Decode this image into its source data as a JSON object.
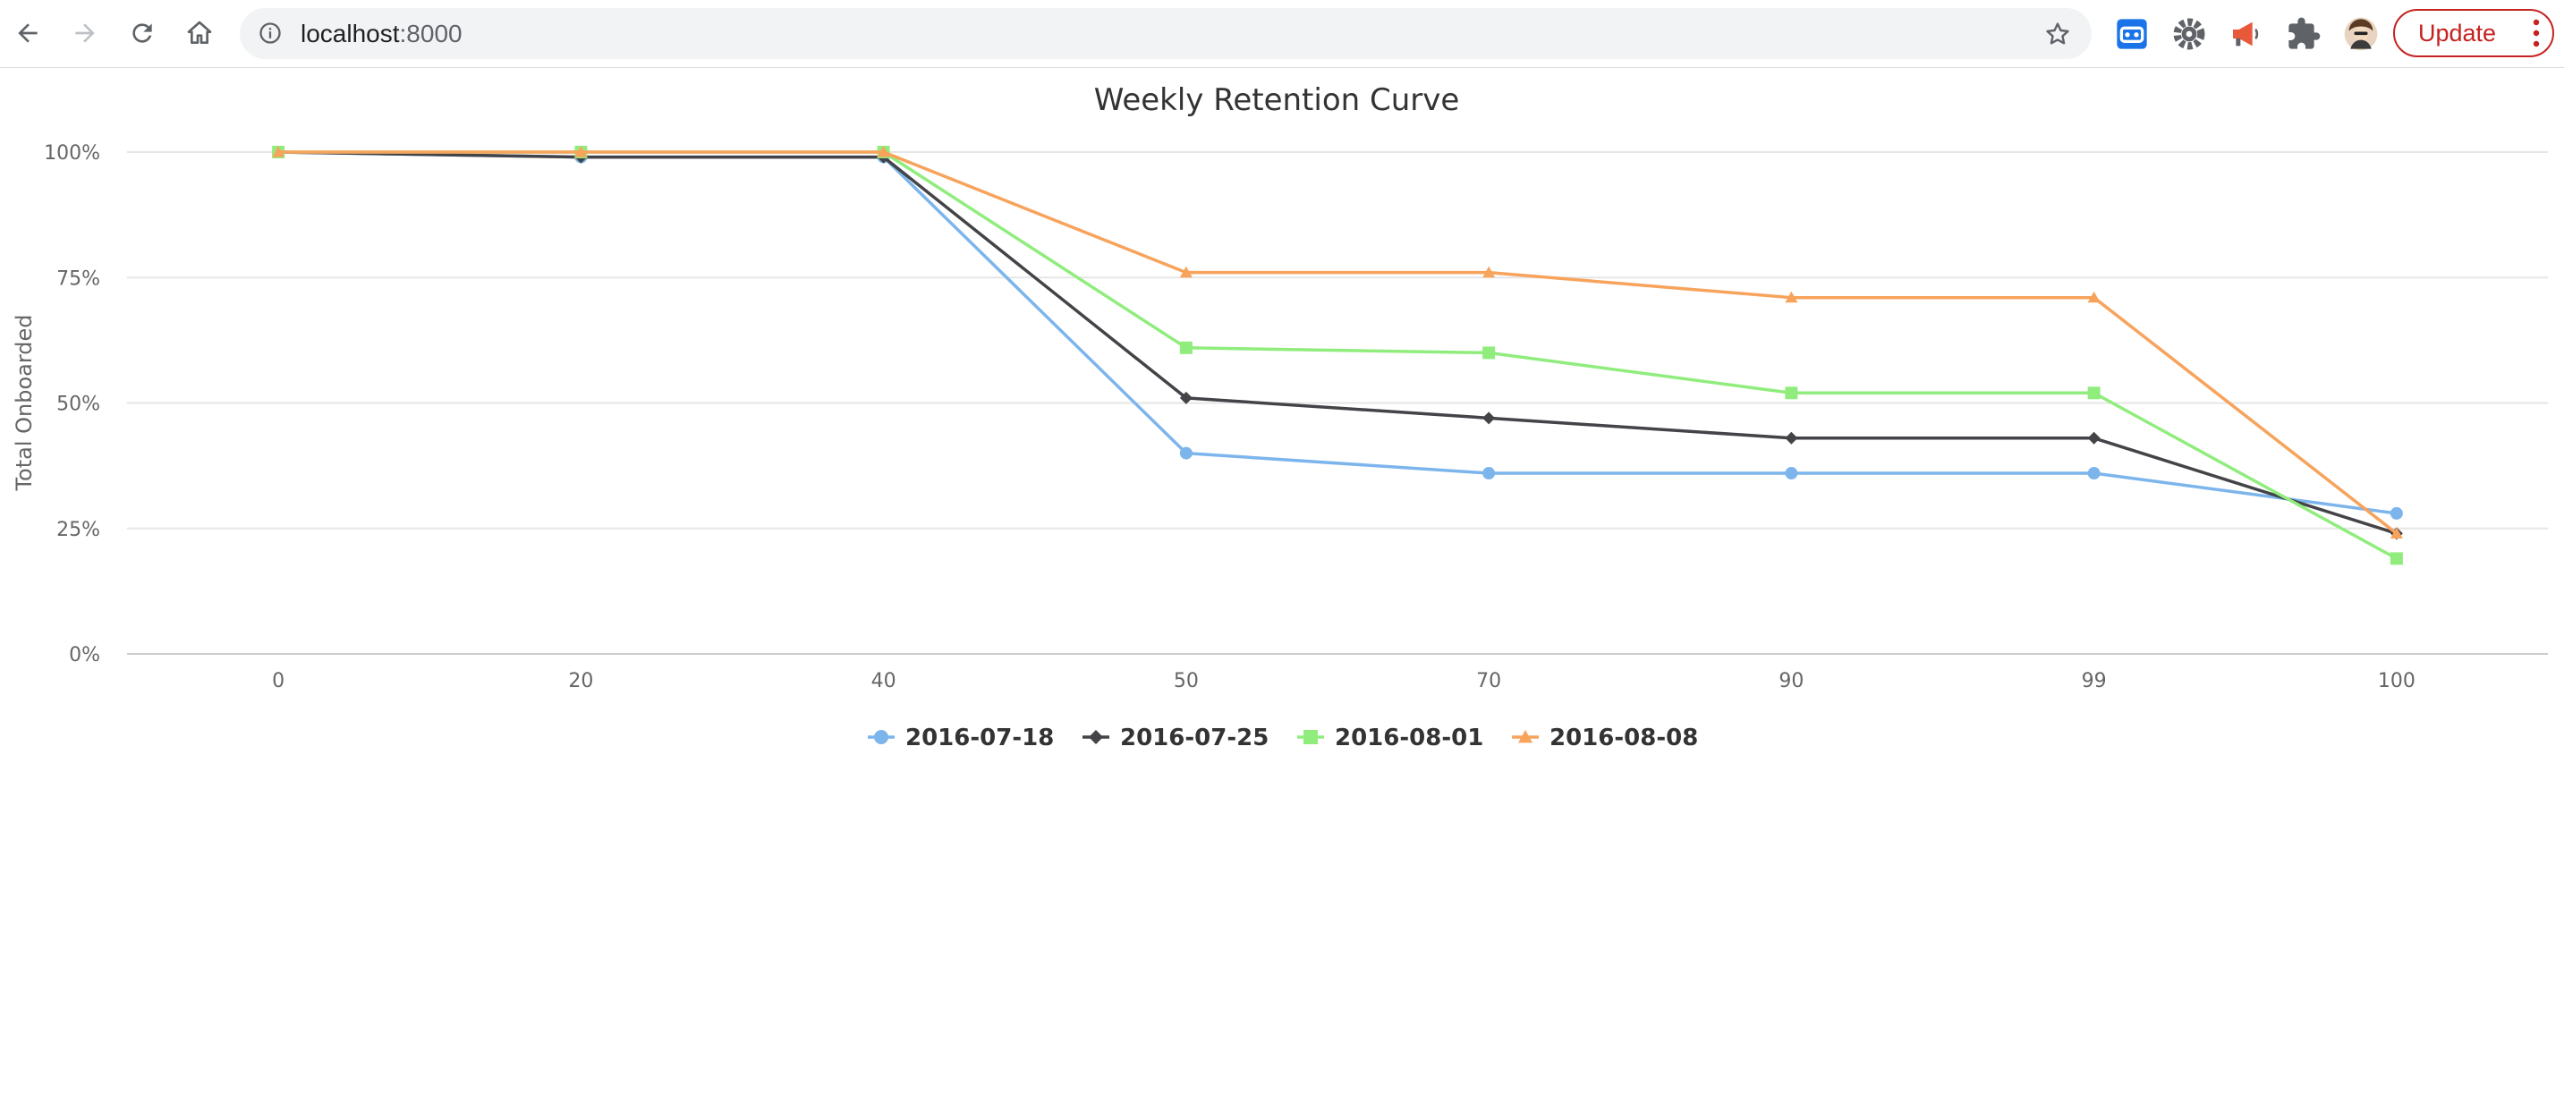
{
  "browser": {
    "url_host": "localhost",
    "url_port": ":8000",
    "update_label": "Update",
    "icons": [
      "back-icon",
      "forward-icon",
      "reload-icon",
      "home-icon",
      "info-icon",
      "star-icon",
      "extension-square-icon",
      "gear-extension-icon",
      "megaphone-icon",
      "puzzle-icon",
      "profile-avatar"
    ],
    "accent": "#c5221f"
  },
  "chart_data": {
    "type": "line",
    "title": "Weekly Retention Curve",
    "xlabel": "",
    "ylabel": "Total Onboarded",
    "categories": [
      "0",
      "20",
      "40",
      "50",
      "70",
      "90",
      "99",
      "100"
    ],
    "y_ticks": [
      "0%",
      "25%",
      "50%",
      "75%",
      "100%"
    ],
    "ylim": [
      0,
      100
    ],
    "grid": true,
    "legend_position": "bottom-center",
    "series": [
      {
        "name": "2016-07-18",
        "color": "#7cb5ec",
        "marker": "circle",
        "values": [
          100,
          99,
          99,
          40,
          36,
          36,
          36,
          28
        ]
      },
      {
        "name": "2016-07-25",
        "color": "#434348",
        "marker": "diamond",
        "values": [
          100,
          99,
          99,
          51,
          47,
          43,
          43,
          24
        ]
      },
      {
        "name": "2016-08-01",
        "color": "#90ed7d",
        "marker": "square",
        "values": [
          100,
          100,
          100,
          61,
          60,
          52,
          52,
          19
        ]
      },
      {
        "name": "2016-08-08",
        "color": "#f7a35c",
        "marker": "triangle",
        "values": [
          100,
          100,
          100,
          76,
          76,
          71,
          71,
          24
        ]
      }
    ]
  }
}
